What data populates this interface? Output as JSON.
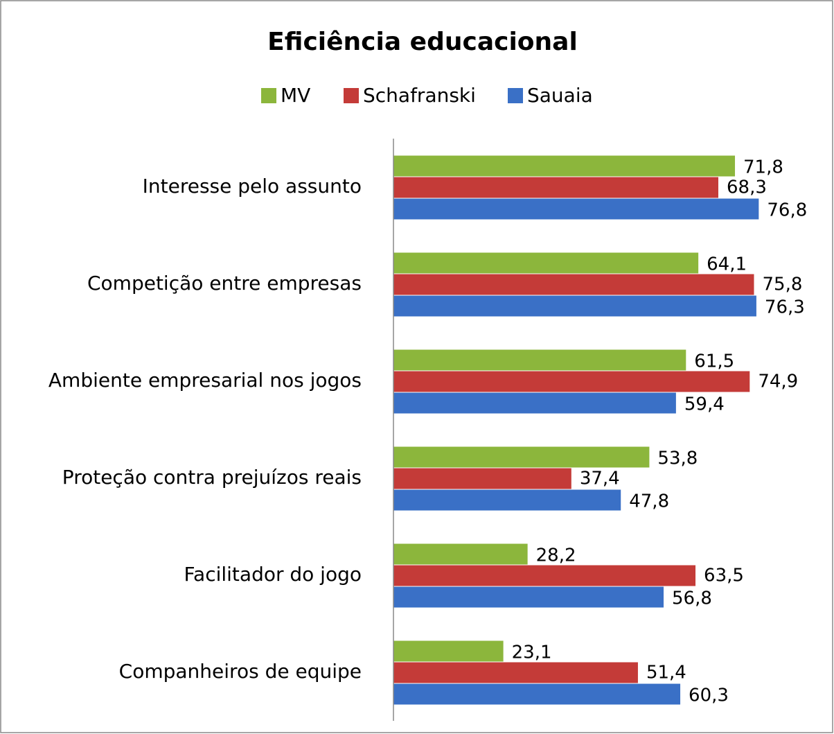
{
  "chart_data": {
    "type": "bar",
    "orientation": "horizontal",
    "title": "Eficiência educacional",
    "categories": [
      "Interesse pelo assunto",
      "Competição entre empresas",
      "Ambiente empresarial nos jogos",
      "Proteção contra prejuízos reais",
      "Facilitador do jogo",
      "Companheiros de equipe"
    ],
    "series": [
      {
        "name": "MV",
        "color": "#8cb63c",
        "values": [
          71.8,
          64.1,
          61.5,
          53.8,
          28.2,
          23.1
        ],
        "value_labels": [
          "71,8",
          "64,1",
          "61,5",
          "53,8",
          "28,2",
          "23,1"
        ]
      },
      {
        "name": "Schafranski",
        "color": "#c43b38",
        "values": [
          68.3,
          75.8,
          74.9,
          37.4,
          63.5,
          51.4
        ],
        "value_labels": [
          "68,3",
          "75,8",
          "74,9",
          "37,4",
          "63,5",
          "51,4"
        ]
      },
      {
        "name": "Sauaia",
        "color": "#3a70c6",
        "values": [
          76.8,
          76.3,
          59.4,
          47.8,
          56.8,
          60.3
        ],
        "value_labels": [
          "76,8",
          "76,3",
          "59,4",
          "47,8",
          "56,8",
          "60,3"
        ]
      }
    ],
    "xlim": [
      0,
      90
    ],
    "legend": "top"
  }
}
